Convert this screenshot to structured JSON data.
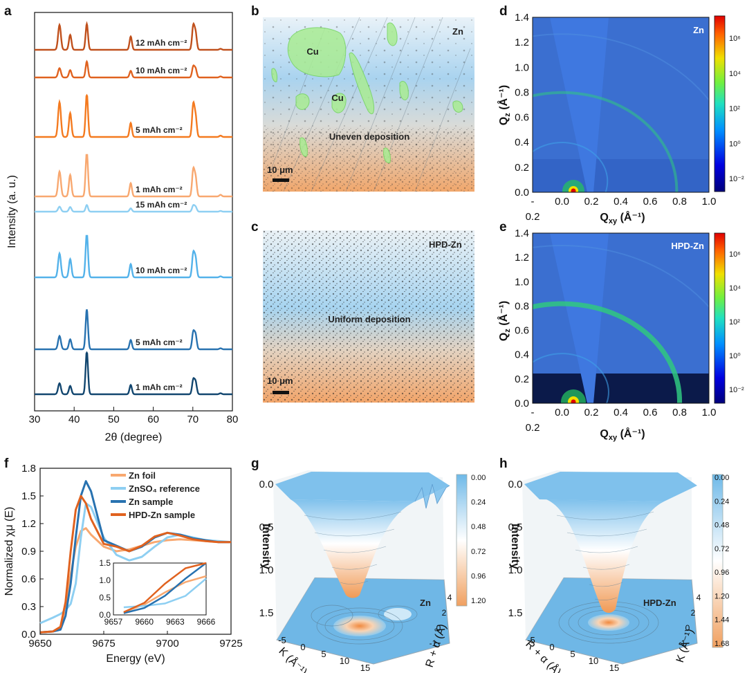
{
  "panel_letters": [
    "a",
    "b",
    "c",
    "d",
    "e",
    "f",
    "g",
    "h"
  ],
  "colors": {
    "dark_orange": "#c0501c",
    "mid_orange": "#e0621f",
    "orange": "#f47a1f",
    "light_orange": "#f8a870",
    "pale_blue": "#8ecff2",
    "sky_blue": "#53b2ea",
    "blue": "#2872b0",
    "navy": "#12466f"
  },
  "icons": [
    "scale-bar-icon",
    "colorbar-icon"
  ],
  "chart_data": [
    {
      "panel": "a",
      "type": "line",
      "xlabel": "2θ (degree)",
      "ylabel": "Intensity (a. u.)",
      "xlim": [
        30,
        80
      ],
      "xticks": [
        "30",
        "40",
        "50",
        "60",
        "70",
        "80"
      ],
      "peak_positions": [
        36.3,
        39.0,
        43.2,
        54.3,
        70.1,
        70.7,
        77.0
      ],
      "series": [
        {
          "label": "1 mAh cm⁻²",
          "color": "#12466f",
          "peak_heights": [
            0.33,
            0.25,
            1.3,
            0.28,
            0.42,
            0.36,
            0.03
          ]
        },
        {
          "label": "5 mAh cm⁻²",
          "color": "#2872b0",
          "peak_heights": [
            0.4,
            0.3,
            1.2,
            0.28,
            0.5,
            0.42,
            0.03
          ]
        },
        {
          "label": "10 mAh cm⁻²",
          "color": "#53b2ea",
          "peak_heights": [
            0.72,
            0.55,
            1.35,
            0.4,
            0.7,
            0.55,
            0.03
          ]
        },
        {
          "label": "15 mAh cm⁻²",
          "color": "#8ecff2",
          "peak_heights": [
            0.15,
            0.14,
            0.2,
            0.1,
            0.18,
            0.14,
            0.02
          ]
        },
        {
          "label": "1 mAh cm⁻²",
          "color": "#f8a870",
          "peak_heights": [
            0.75,
            0.65,
            1.35,
            0.4,
            0.78,
            0.55,
            0.05
          ]
        },
        {
          "label": "5 mAh cm⁻²",
          "color": "#f47a1f",
          "peak_heights": [
            1.05,
            0.72,
            1.3,
            0.42,
            0.95,
            0.6,
            0.04
          ]
        },
        {
          "label": "10 mAh cm⁻²",
          "color": "#e0621f",
          "peak_heights": [
            0.28,
            0.22,
            0.48,
            0.2,
            0.32,
            0.25,
            0.03
          ]
        },
        {
          "label": "12 mAh cm⁻²",
          "color": "#c0501c",
          "peak_heights": [
            0.75,
            0.45,
            0.78,
            0.4,
            0.7,
            0.5,
            0.03
          ]
        }
      ]
    },
    {
      "panel": "d",
      "type": "heatmap",
      "sample_label": "Zn",
      "xlabel_main": "Q",
      "xlabel_sub": "xy",
      "xlabel_unit": " (Å⁻¹)",
      "ylabel_main": "Q",
      "ylabel_sub": "z",
      "ylabel_unit": " (Å⁻¹)",
      "xlim": [
        -0.2,
        1.0
      ],
      "ylim": [
        0.0,
        1.4
      ],
      "xticks": [
        "-",
        "0.0",
        "0.2",
        "0.4",
        "0.6",
        "0.8",
        "1.0"
      ],
      "xticks_extra": "0.2",
      "yticks": [
        "0.0",
        "0.2",
        "0.4",
        "0.6",
        "0.8",
        "1.0",
        "1.2",
        "1.4"
      ],
      "rings_q": [
        0.78
      ],
      "colorbar_labels": [
        "10⁶",
        "10⁴",
        "10²",
        "10⁰",
        "10⁻²"
      ]
    },
    {
      "panel": "e",
      "type": "heatmap",
      "sample_label": "HPD-Zn",
      "xlabel_main": "Q",
      "xlabel_sub": "xy",
      "xlabel_unit": " (Å⁻¹)",
      "ylabel_main": "Q",
      "ylabel_sub": "z",
      "ylabel_unit": " (Å⁻¹)",
      "xlim": [
        -0.2,
        1.0
      ],
      "ylim": [
        0.0,
        1.4
      ],
      "xticks": [
        "-",
        "0.0",
        "0.2",
        "0.4",
        "0.6",
        "0.8",
        "1.0"
      ],
      "xticks_extra": "0.2",
      "yticks": [
        "0.0",
        "0.2",
        "0.4",
        "0.6",
        "0.8",
        "1.0",
        "1.2",
        "1.4"
      ],
      "rings_q": [
        0.8
      ],
      "colorbar_labels": [
        "10⁶",
        "10⁴",
        "10²",
        "10⁰",
        "10⁻²"
      ]
    },
    {
      "panel": "f",
      "type": "line",
      "xlabel": "Energy (eV)",
      "ylabel": "Normalized χμ (E)",
      "xlim": [
        9650,
        9725
      ],
      "ylim": [
        0.0,
        1.8
      ],
      "xticks": [
        "9650",
        "9675",
        "9700",
        "9725"
      ],
      "yticks": [
        "0.0",
        "0.3",
        "0.6",
        "0.9",
        "1.2",
        "1.5",
        "1.8"
      ],
      "series": [
        {
          "name": "Zn foil",
          "color": "#f8a870",
          "x": [
            9650,
            9655,
            9658,
            9660,
            9662,
            9664,
            9666,
            9668,
            9670,
            9675,
            9680,
            9685,
            9690,
            9695,
            9700,
            9705,
            9710,
            9715,
            9720,
            9725
          ],
          "y": [
            0.02,
            0.03,
            0.08,
            0.3,
            0.65,
            0.95,
            1.12,
            1.15,
            1.08,
            0.95,
            0.9,
            0.92,
            0.96,
            1.0,
            1.02,
            1.03,
            1.02,
            1.01,
            1.0,
            1.0
          ]
        },
        {
          "name": "ZnSO₄ reference",
          "color": "#8ecff2",
          "x": [
            9650,
            9655,
            9658,
            9660,
            9662,
            9664,
            9666,
            9668,
            9670,
            9675,
            9680,
            9685,
            9690,
            9695,
            9700,
            9705,
            9710,
            9715,
            9720,
            9725
          ],
          "y": [
            0.12,
            0.18,
            0.22,
            0.26,
            0.33,
            0.55,
            1.05,
            1.42,
            1.38,
            1.05,
            0.86,
            0.8,
            0.84,
            0.95,
            1.05,
            1.08,
            1.05,
            1.02,
            1.01,
            1.0
          ]
        },
        {
          "name": "Zn sample",
          "color": "#2872b0",
          "x": [
            9650,
            9655,
            9658,
            9660,
            9662,
            9664,
            9666,
            9668,
            9670,
            9675,
            9680,
            9685,
            9690,
            9695,
            9700,
            9705,
            9710,
            9715,
            9720,
            9725
          ],
          "y": [
            0.02,
            0.03,
            0.05,
            0.2,
            0.55,
            1.05,
            1.5,
            1.66,
            1.55,
            1.02,
            0.96,
            0.9,
            0.95,
            1.05,
            1.1,
            1.08,
            1.04,
            1.02,
            1.0,
            1.0
          ]
        },
        {
          "name": "HPD-Zn sample",
          "color": "#e0621f",
          "x": [
            9650,
            9655,
            9658,
            9660,
            9662,
            9664,
            9666,
            9668,
            9670,
            9675,
            9680,
            9685,
            9690,
            9695,
            9700,
            9705,
            9710,
            9715,
            9720,
            9725
          ],
          "y": [
            0.02,
            0.03,
            0.08,
            0.35,
            0.9,
            1.35,
            1.5,
            1.42,
            1.25,
            0.98,
            0.95,
            0.9,
            0.96,
            1.06,
            1.1,
            1.07,
            1.03,
            1.01,
            1.0,
            1.0
          ]
        }
      ],
      "inset": {
        "xlim": [
          9657,
          9666
        ],
        "ylim": [
          0.0,
          1.5
        ],
        "xticks": [
          "9657",
          "9660",
          "9663",
          "9666"
        ],
        "yticks": [
          "0.0",
          "0.5",
          "1.0",
          "1.5"
        ]
      }
    },
    {
      "panel": "g",
      "type": "area",
      "sample_label": "Zn",
      "zlabel": "Intensity",
      "xlabel": "K (Å⁻¹)",
      "ylabel": "R + α (Å)",
      "zticks": [
        "0.0",
        "0.5",
        "1.0",
        "1.5"
      ],
      "xticks": [
        "-5",
        "0",
        "5",
        "10",
        "15"
      ],
      "yticks": [
        "4",
        "2",
        "0",
        "-1"
      ],
      "colorbar_labels": [
        "0.00",
        "0.24",
        "0.48",
        "0.72",
        "0.96",
        "1.20"
      ]
    },
    {
      "panel": "h",
      "type": "area",
      "sample_label": "HPD-Zn",
      "zlabel": "Intensity",
      "xlabel": "R + α (Å)",
      "ylabel": "K (Å⁻¹)",
      "zticks": [
        "0.0",
        "0.5",
        "1.0",
        "1.5"
      ],
      "xticks": [
        "-5",
        "0",
        "5",
        "10",
        "15"
      ],
      "yticks": [
        "4",
        "2",
        "0",
        "-1"
      ],
      "colorbar_labels": [
        "0.00",
        "0.24",
        "0.48",
        "0.72",
        "0.96",
        "1.20",
        "1.44",
        "1.68"
      ]
    }
  ],
  "micrographs": [
    {
      "panel": "b",
      "sample_label": "Zn",
      "labels": [
        "Cu",
        "Cu",
        "Uneven deposition"
      ],
      "scale": "10 μm"
    },
    {
      "panel": "c",
      "sample_label": "HPD-Zn",
      "labels": [
        "Uniform deposition"
      ],
      "scale": "10 μm"
    }
  ]
}
